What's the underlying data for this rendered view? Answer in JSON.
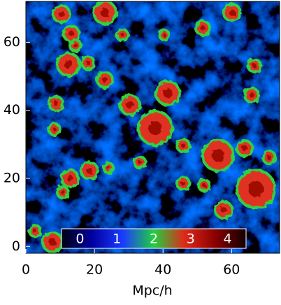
{
  "chart_data": {
    "type": "heatmap",
    "xlabel": "Mpc/h",
    "xlim": [
      0,
      74
    ],
    "ylim": [
      -2,
      72
    ],
    "xticks": [
      0,
      20,
      40,
      60
    ],
    "yticks": [
      0,
      20,
      40,
      60
    ],
    "colorbar": {
      "lim": [
        -0.5,
        4.5
      ],
      "ticks": [
        0,
        1,
        2,
        3,
        4
      ],
      "colors": [
        "#000010",
        "#0000a0",
        "#1a3cff",
        "#20d040",
        "#e02818",
        "#8a0000",
        "#100000"
      ]
    }
  }
}
